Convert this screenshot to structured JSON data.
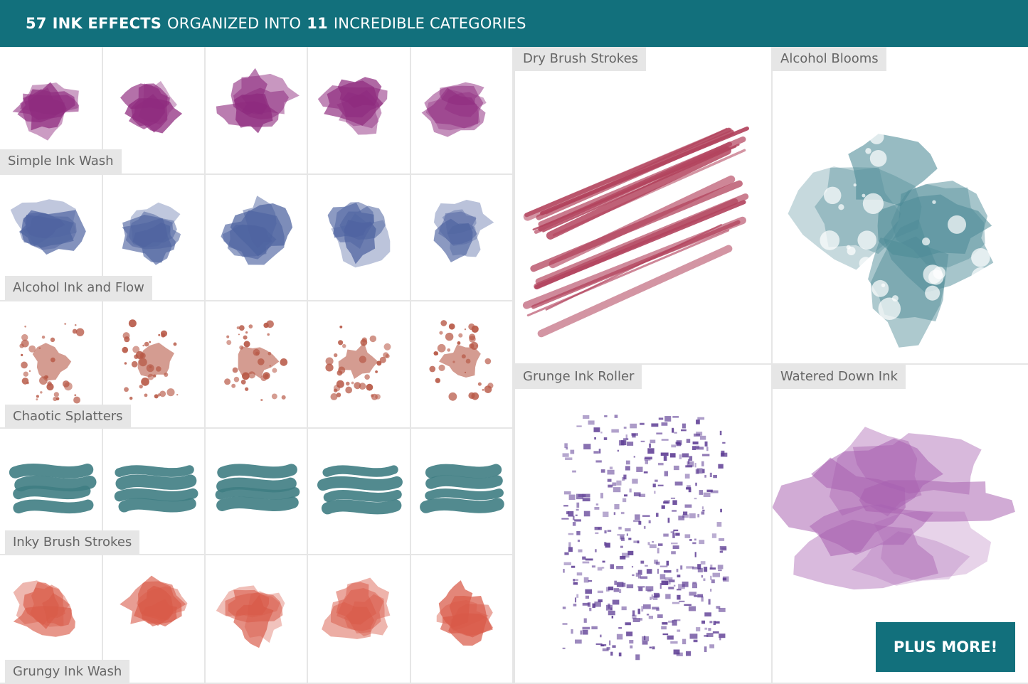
{
  "header": {
    "count": "57",
    "effects": "INK EFFECTS",
    "organized": "ORGANIZED INTO",
    "categories_count": "11",
    "incredible": "INCREDIBLE CATEGORIES"
  },
  "grid_rows": [
    {
      "label": "Simple Ink Wash",
      "color": "#8e2a7e"
    },
    {
      "label": "Alcohol Ink and Flow",
      "color": "#4e63a0"
    },
    {
      "label": "Chaotic Splatters",
      "color": "#b85a48"
    },
    {
      "label": "Inky Brush Strokes",
      "color": "#3f7d83"
    },
    {
      "label": "Grungy Ink Wash",
      "color": "#d95a48"
    }
  ],
  "panels": [
    {
      "label": "Dry Brush Strokes",
      "color": "#b3445e"
    },
    {
      "label": "Alcohol Blooms",
      "color": "#4d8a96"
    },
    {
      "label": "Grunge Ink Roller",
      "color": "#5b3a92"
    },
    {
      "label": "Watered Down Ink",
      "color": "#a860b0"
    }
  ],
  "cta": {
    "label": "PLUS MORE!"
  }
}
